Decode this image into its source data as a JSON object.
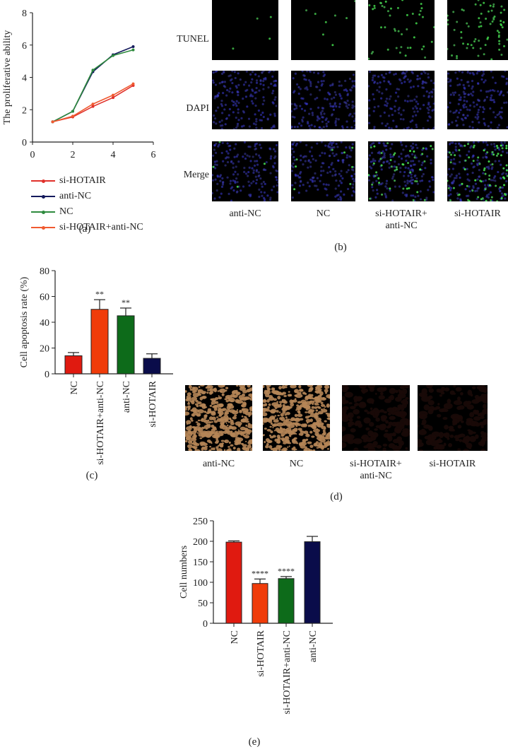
{
  "figure": {
    "panel_labels": {
      "a": "(a)",
      "b": "(b)",
      "c": "(c)",
      "d": "(d)",
      "e": "(e)"
    }
  },
  "colors": {
    "si_hotair_line": "#e0302a",
    "anti_nc_line": "#141a5c",
    "nc_line": "#2e8a3e",
    "si_hotair_anti_nc_line": "#f05a30",
    "bar_red": "#e01a10",
    "bar_orange": "#f03c0a",
    "bar_green": "#0d6b1a",
    "bar_navy": "#0a0c4a"
  },
  "panel_b": {
    "row_labels": [
      "TUNEL",
      "DAPI",
      "Merge"
    ],
    "column_labels": [
      "anti-NC",
      "NC",
      "si-HOTAIR+\nanti-NC",
      "si-HOTAIR"
    ],
    "column_labels_lines": [
      [
        "anti-NC"
      ],
      [
        "NC"
      ],
      [
        "si-HOTAIR+",
        "anti-NC"
      ],
      [
        "si-HOTAIR"
      ]
    ]
  },
  "panel_d": {
    "column_labels_lines": [
      [
        "anti-NC"
      ],
      [
        "NC"
      ],
      [
        "si-HOTAIR+",
        "anti-NC"
      ],
      [
        "si-HOTAIR"
      ]
    ]
  },
  "chart_data": [
    {
      "id": "a",
      "type": "line",
      "title": "",
      "xlabel": "",
      "ylabel": "The proliferative ability",
      "x": [
        1,
        2,
        3,
        4,
        5
      ],
      "xlim": [
        0,
        6
      ],
      "ylim": [
        0,
        8
      ],
      "xticks": [
        0,
        2,
        4,
        6
      ],
      "yticks": [
        0,
        2,
        4,
        6,
        8
      ],
      "grid": false,
      "legend_position": "below",
      "series": [
        {
          "name": "si-HOTAIR",
          "color": "#e0302a",
          "values": [
            1.25,
            1.55,
            2.2,
            2.75,
            3.5
          ]
        },
        {
          "name": "anti-NC",
          "color": "#141a5c",
          "values": [
            1.25,
            1.9,
            4.35,
            5.4,
            5.9
          ]
        },
        {
          "name": "NC",
          "color": "#2e8a3e",
          "values": [
            1.25,
            1.9,
            4.45,
            5.35,
            5.7
          ]
        },
        {
          "name": "si-HOTAIR+anti-NC",
          "color": "#f05a30",
          "values": [
            1.25,
            1.6,
            2.35,
            2.9,
            3.6
          ]
        }
      ]
    },
    {
      "id": "c",
      "type": "bar",
      "title": "",
      "xlabel": "",
      "ylabel": "Cell apoptosis rate (%)",
      "categories": [
        "NC",
        "si-HOTAIR+anti-NC",
        "anti-NC",
        "si-HOTAIR"
      ],
      "values": [
        14,
        50,
        45,
        12
      ],
      "errors": [
        2.5,
        7.5,
        6,
        3.5
      ],
      "annotations": [
        "",
        "**",
        "**",
        ""
      ],
      "colors": [
        "#e01a10",
        "#f03c0a",
        "#0d6b1a",
        "#0a0c4a"
      ],
      "ylim": [
        0,
        80
      ],
      "yticks": [
        0,
        20,
        40,
        60,
        80
      ],
      "grid": false
    },
    {
      "id": "e",
      "type": "bar",
      "title": "",
      "xlabel": "",
      "ylabel": "Cell numbers",
      "categories": [
        "NC",
        "si-HOTAIR",
        "si-HOTAIR+anti-NC",
        "anti-NC"
      ],
      "values": [
        198,
        97,
        109,
        199
      ],
      "errors": [
        3,
        11,
        5,
        13
      ],
      "annotations": [
        "",
        "****",
        "****",
        ""
      ],
      "colors": [
        "#e01a10",
        "#f03c0a",
        "#0d6b1a",
        "#0a0c4a"
      ],
      "ylim": [
        0,
        250
      ],
      "yticks": [
        0,
        50,
        100,
        150,
        200,
        250
      ],
      "grid": false
    }
  ]
}
